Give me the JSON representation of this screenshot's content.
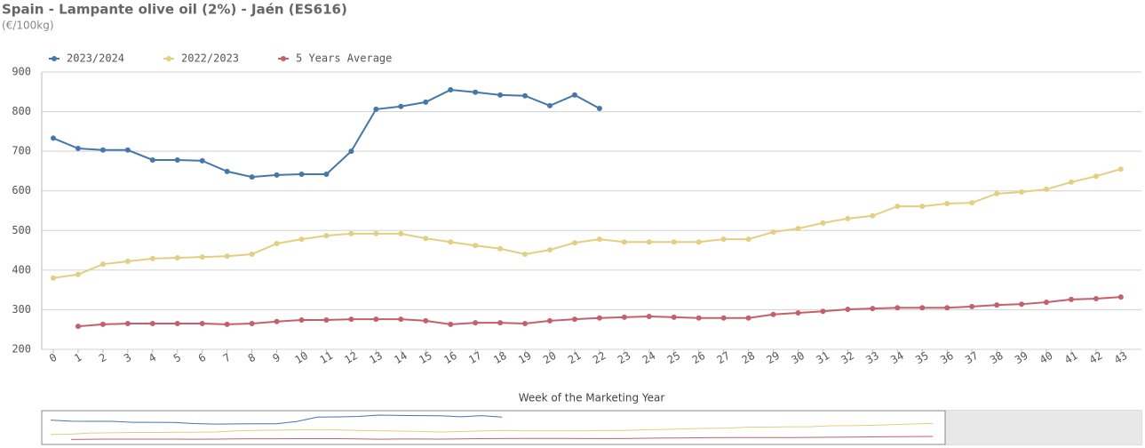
{
  "chart_data": {
    "type": "line",
    "title": "Spain - Lampante olive oil (2%) - Jaén (ES616)",
    "subtitle": "(€/100kg)",
    "x_label": "Week of the Marketing Year",
    "categories": [
      "0",
      "1",
      "2",
      "3",
      "4",
      "5",
      "6",
      "7",
      "8",
      "9",
      "10",
      "11",
      "12",
      "13",
      "14",
      "15",
      "16",
      "17",
      "18",
      "19",
      "20",
      "21",
      "22",
      "23",
      "24",
      "25",
      "26",
      "27",
      "28",
      "29",
      "30",
      "31",
      "32",
      "33",
      "34",
      "35",
      "36",
      "37",
      "38",
      "39",
      "40",
      "41",
      "42",
      "43"
    ],
    "series": [
      {
        "name": "2023/2024",
        "color": "#4477aa",
        "values": [
          733,
          707,
          703,
          703,
          678,
          678,
          676,
          649,
          635,
          640,
          642,
          642,
          700,
          806,
          813,
          824,
          855,
          849,
          842,
          840,
          815,
          842,
          808,
          null,
          null,
          null,
          null,
          null,
          null,
          null,
          null,
          null,
          null,
          null,
          null,
          null,
          null,
          null,
          null,
          null,
          null,
          null,
          null,
          null
        ]
      },
      {
        "name": "2022/2023",
        "color": "#e2cf81",
        "values": [
          380,
          389,
          415,
          422,
          429,
          431,
          433,
          435,
          440,
          467,
          478,
          487,
          492,
          492,
          492,
          480,
          471,
          462,
          454,
          440,
          451,
          469,
          478,
          471,
          471,
          471,
          471,
          478,
          478,
          496,
          505,
          519,
          530,
          537,
          561,
          561,
          568,
          570,
          593,
          597,
          604,
          622,
          637,
          655
        ]
      },
      {
        "name": "5 Years Average",
        "color": "#c4606e",
        "values": [
          null,
          258,
          263,
          265,
          265,
          265,
          265,
          263,
          265,
          270,
          274,
          274,
          276,
          276,
          276,
          272,
          263,
          267,
          267,
          265,
          272,
          276,
          279,
          281,
          283,
          281,
          279,
          279,
          279,
          288,
          292,
          296,
          301,
          303,
          305,
          305,
          305,
          308,
          312,
          314,
          319,
          326,
          328,
          332
        ]
      }
    ],
    "ylim": [
      200,
      900
    ],
    "yticks": [
      200,
      300,
      400,
      500,
      600,
      700,
      800,
      900
    ],
    "grid": true,
    "legend": "top-left"
  }
}
